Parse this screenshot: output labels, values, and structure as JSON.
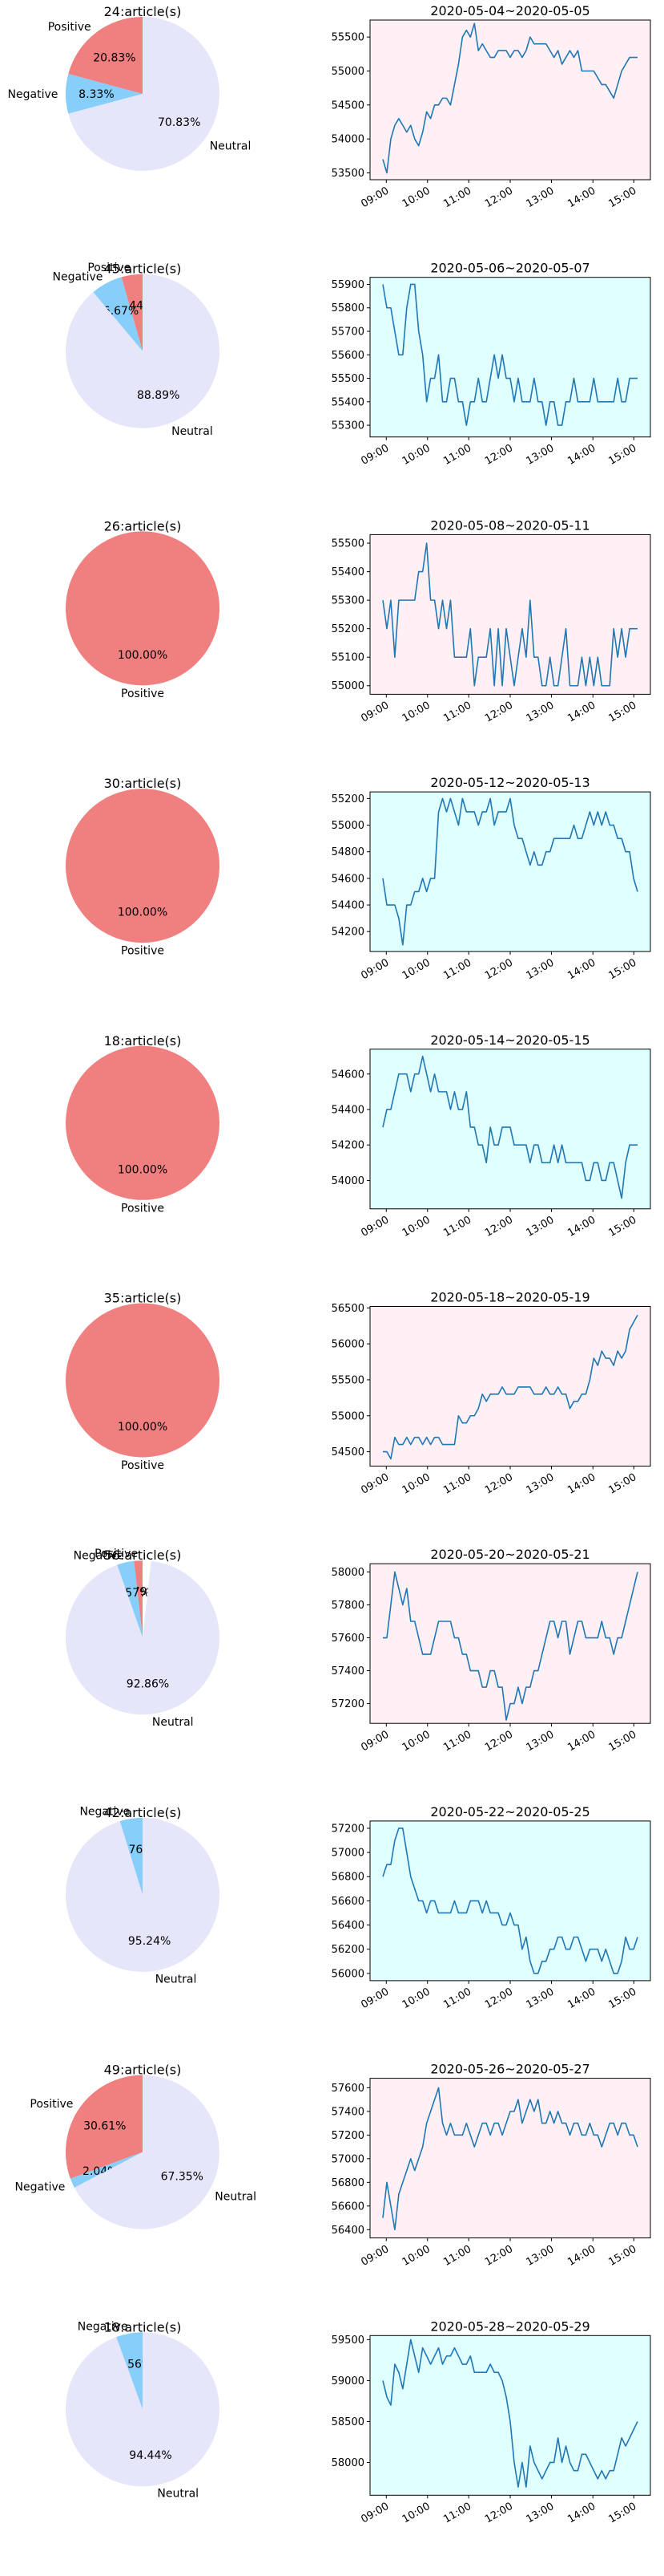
{
  "chart_data": [
    {
      "type": "pie",
      "title": "24:article(s)",
      "labels": [
        "Positive",
        "Negative",
        "Neutral"
      ],
      "values": [
        20.83,
        8.33,
        70.83
      ],
      "pct_labels": [
        "20.83%",
        "8.33%",
        "70.83%"
      ],
      "colors": [
        "#f08080",
        "#87cefa",
        "#e6e6fa"
      ]
    },
    {
      "type": "line",
      "title": "2020-05-04~2020-05-05",
      "background": "#fff0f5",
      "ylim": [
        53400,
        55750
      ],
      "yticks": [
        53500,
        54000,
        54500,
        55000,
        55500
      ],
      "xtick_labels": [
        "09:00",
        "10:00",
        "11:00",
        "12:00",
        "13:00",
        "14:00",
        "15:00"
      ],
      "values": [
        53700,
        53500,
        54000,
        54200,
        54300,
        54200,
        54100,
        54200,
        54000,
        53900,
        54100,
        54400,
        54300,
        54500,
        54500,
        54600,
        54600,
        54500,
        54800,
        55100,
        55500,
        55600,
        55500,
        55700,
        55300,
        55400,
        55300,
        55200,
        55200,
        55300,
        55300,
        55300,
        55200,
        55300,
        55300,
        55200,
        55300,
        55500,
        55400,
        55400,
        55400,
        55400,
        55300,
        55200,
        55300,
        55100,
        55200,
        55300,
        55200,
        55300,
        55000,
        55000,
        55000,
        55000,
        54900,
        54800,
        54800,
        54700,
        54600,
        54800,
        55000,
        55100,
        55200,
        55200,
        55200
      ]
    },
    {
      "type": "pie",
      "title": "45:article(s)",
      "labels": [
        "Positive",
        "Negative",
        "Neutral"
      ],
      "values": [
        4.44,
        6.67,
        88.89
      ],
      "pct_labels": [
        "4.44%",
        "6.67%",
        "88.89%"
      ],
      "colors": [
        "#f08080",
        "#87cefa",
        "#e6e6fa"
      ]
    },
    {
      "type": "line",
      "title": "2020-05-06~2020-05-07",
      "background": "#e0ffff",
      "ylim": [
        55250,
        55930
      ],
      "yticks": [
        55300,
        55400,
        55500,
        55600,
        55700,
        55800,
        55900
      ],
      "xtick_labels": [
        "09:00",
        "10:00",
        "11:00",
        "12:00",
        "13:00",
        "14:00",
        "15:00"
      ],
      "values": [
        55900,
        55800,
        55800,
        55700,
        55600,
        55600,
        55800,
        55900,
        55900,
        55700,
        55600,
        55400,
        55500,
        55500,
        55600,
        55400,
        55400,
        55500,
        55500,
        55400,
        55400,
        55300,
        55400,
        55400,
        55500,
        55400,
        55400,
        55500,
        55600,
        55500,
        55600,
        55500,
        55500,
        55400,
        55500,
        55400,
        55400,
        55400,
        55500,
        55400,
        55400,
        55300,
        55400,
        55400,
        55300,
        55300,
        55400,
        55400,
        55500,
        55400,
        55400,
        55400,
        55400,
        55500,
        55400,
        55400,
        55400,
        55400,
        55400,
        55500,
        55400,
        55400,
        55500,
        55500,
        55500
      ]
    },
    {
      "type": "pie",
      "title": "26:article(s)",
      "labels": [
        "Positive"
      ],
      "values": [
        100
      ],
      "pct_labels": [
        "100.00%"
      ],
      "colors": [
        "#f08080"
      ]
    },
    {
      "type": "line",
      "title": "2020-05-08~2020-05-11",
      "background": "#fff0f5",
      "ylim": [
        54970,
        55530
      ],
      "yticks": [
        55000,
        55100,
        55200,
        55300,
        55400,
        55500
      ],
      "xtick_labels": [
        "09:00",
        "10:00",
        "11:00",
        "12:00",
        "13:00",
        "14:00",
        "15:00"
      ],
      "values": [
        55300,
        55200,
        55300,
        55100,
        55300,
        55300,
        55300,
        55300,
        55300,
        55400,
        55400,
        55500,
        55300,
        55300,
        55200,
        55300,
        55200,
        55300,
        55100,
        55100,
        55100,
        55100,
        55200,
        55000,
        55100,
        55100,
        55100,
        55200,
        55000,
        55200,
        55000,
        55200,
        55100,
        55000,
        55100,
        55200,
        55100,
        55300,
        55100,
        55100,
        55000,
        55000,
        55100,
        55000,
        55000,
        55100,
        55200,
        55000,
        55000,
        55000,
        55100,
        55000,
        55100,
        55000,
        55100,
        55000,
        55000,
        55000,
        55200,
        55100,
        55200,
        55100,
        55200,
        55200,
        55200
      ]
    },
    {
      "type": "pie",
      "title": "30:article(s)",
      "labels": [
        "Positive"
      ],
      "values": [
        100
      ],
      "pct_labels": [
        "100.00%"
      ],
      "colors": [
        "#f08080"
      ]
    },
    {
      "type": "line",
      "title": "2020-05-12~2020-05-13",
      "background": "#e0ffff",
      "ylim": [
        54050,
        55250
      ],
      "yticks": [
        54200,
        54400,
        54600,
        54800,
        55000,
        55200
      ],
      "xtick_labels": [
        "09:00",
        "10:00",
        "11:00",
        "12:00",
        "13:00",
        "14:00",
        "15:00"
      ],
      "values": [
        54600,
        54400,
        54400,
        54400,
        54300,
        54100,
        54400,
        54400,
        54500,
        54500,
        54600,
        54500,
        54600,
        54600,
        55100,
        55200,
        55100,
        55200,
        55100,
        55000,
        55200,
        55100,
        55100,
        55100,
        55000,
        55100,
        55100,
        55200,
        55000,
        55100,
        55100,
        55100,
        55200,
        55000,
        54900,
        54900,
        54800,
        54700,
        54800,
        54700,
        54700,
        54800,
        54800,
        54900,
        54900,
        54900,
        54900,
        54900,
        55000,
        54900,
        54900,
        55000,
        55100,
        55000,
        55100,
        55000,
        55100,
        55000,
        55000,
        54900,
        54900,
        54800,
        54800,
        54600,
        54500
      ]
    },
    {
      "type": "pie",
      "title": "18:article(s)",
      "labels": [
        "Positive"
      ],
      "values": [
        100
      ],
      "pct_labels": [
        "100.00%"
      ],
      "colors": [
        "#f08080"
      ]
    },
    {
      "type": "line",
      "title": "2020-05-14~2020-05-15",
      "background": "#e0ffff",
      "ylim": [
        53840,
        54740
      ],
      "yticks": [
        54000,
        54200,
        54400,
        54600
      ],
      "xtick_labels": [
        "09:00",
        "10:00",
        "11:00",
        "12:00",
        "13:00",
        "14:00",
        "15:00"
      ],
      "values": [
        54300,
        54400,
        54400,
        54500,
        54600,
        54600,
        54600,
        54500,
        54600,
        54600,
        54700,
        54600,
        54500,
        54600,
        54500,
        54500,
        54500,
        54400,
        54500,
        54400,
        54400,
        54500,
        54300,
        54300,
        54200,
        54200,
        54100,
        54300,
        54200,
        54200,
        54300,
        54300,
        54300,
        54200,
        54200,
        54200,
        54200,
        54100,
        54200,
        54200,
        54100,
        54100,
        54100,
        54200,
        54100,
        54200,
        54100,
        54100,
        54100,
        54100,
        54100,
        54000,
        54000,
        54100,
        54100,
        54000,
        54000,
        54100,
        54100,
        54000,
        53900,
        54100,
        54200,
        54200,
        54200
      ]
    },
    {
      "type": "pie",
      "title": "35:article(s)",
      "labels": [
        "Positive"
      ],
      "values": [
        100
      ],
      "pct_labels": [
        "100.00%"
      ],
      "colors": [
        "#f08080"
      ]
    },
    {
      "type": "line",
      "title": "2020-05-18~2020-05-19",
      "background": "#fff0f5",
      "ylim": [
        54300,
        56520
      ],
      "yticks": [
        54500,
        55000,
        55500,
        56000,
        56500
      ],
      "xtick_labels": [
        "09:00",
        "10:00",
        "11:00",
        "12:00",
        "13:00",
        "14:00",
        "15:00"
      ],
      "values": [
        54500,
        54500,
        54400,
        54700,
        54600,
        54600,
        54700,
        54600,
        54700,
        54700,
        54600,
        54700,
        54600,
        54700,
        54700,
        54600,
        54600,
        54600,
        54600,
        55000,
        54900,
        54900,
        55000,
        55000,
        55100,
        55300,
        55200,
        55300,
        55300,
        55300,
        55400,
        55300,
        55300,
        55300,
        55400,
        55400,
        55400,
        55400,
        55300,
        55300,
        55300,
        55400,
        55300,
        55300,
        55400,
        55300,
        55300,
        55100,
        55200,
        55200,
        55300,
        55300,
        55500,
        55800,
        55700,
        55900,
        55800,
        55800,
        55700,
        55900,
        55800,
        55900,
        56200,
        56300,
        56400
      ]
    },
    {
      "type": "pie",
      "title": "56:article(s)",
      "labels": [
        "Positive",
        "Negative",
        "Neutral"
      ],
      "values": [
        1.79,
        3.57,
        92.86
      ],
      "pct_labels": [
        "1.79%",
        "3.57%",
        "92.86%"
      ],
      "colors": [
        "#f08080",
        "#87cefa",
        "#e6e6fa"
      ]
    },
    {
      "type": "line",
      "title": "2020-05-20~2020-05-21",
      "background": "#fff0f5",
      "ylim": [
        57080,
        58050
      ],
      "yticks": [
        57200,
        57400,
        57600,
        57800,
        58000
      ],
      "xtick_labels": [
        "09:00",
        "10:00",
        "11:00",
        "12:00",
        "13:00",
        "14:00",
        "15:00"
      ],
      "values": [
        57600,
        57600,
        57800,
        58000,
        57900,
        57800,
        57900,
        57700,
        57700,
        57600,
        57500,
        57500,
        57500,
        57600,
        57700,
        57700,
        57700,
        57700,
        57600,
        57600,
        57500,
        57500,
        57400,
        57400,
        57400,
        57300,
        57300,
        57400,
        57400,
        57300,
        57300,
        57100,
        57200,
        57200,
        57300,
        57200,
        57300,
        57300,
        57400,
        57400,
        57500,
        57600,
        57700,
        57700,
        57600,
        57700,
        57700,
        57500,
        57600,
        57700,
        57700,
        57600,
        57600,
        57600,
        57600,
        57700,
        57600,
        57600,
        57500,
        57600,
        57600,
        57700,
        57800,
        57900,
        58000
      ]
    },
    {
      "type": "pie",
      "title": "42:article(s)",
      "labels": [
        "Negative",
        "Neutral"
      ],
      "values": [
        4.76,
        95.24
      ],
      "pct_labels": [
        "4.76%",
        "95.24%"
      ],
      "colors": [
        "#87cefa",
        "#e6e6fa"
      ]
    },
    {
      "type": "line",
      "title": "2020-05-22~2020-05-25",
      "background": "#e0ffff",
      "ylim": [
        55940,
        57260
      ],
      "yticks": [
        56000,
        56200,
        56400,
        56600,
        56800,
        57000,
        57200
      ],
      "xtick_labels": [
        "09:00",
        "10:00",
        "11:00",
        "12:00",
        "13:00",
        "14:00",
        "15:00"
      ],
      "values": [
        56800,
        56900,
        56900,
        57100,
        57200,
        57200,
        57000,
        56800,
        56700,
        56600,
        56600,
        56500,
        56600,
        56600,
        56500,
        56500,
        56500,
        56500,
        56600,
        56500,
        56500,
        56500,
        56600,
        56600,
        56600,
        56500,
        56600,
        56500,
        56500,
        56500,
        56400,
        56400,
        56500,
        56400,
        56400,
        56200,
        56300,
        56100,
        56000,
        56000,
        56100,
        56100,
        56200,
        56200,
        56300,
        56300,
        56200,
        56200,
        56300,
        56300,
        56200,
        56100,
        56200,
        56200,
        56200,
        56100,
        56200,
        56100,
        56000,
        56000,
        56100,
        56300,
        56200,
        56200,
        56300
      ]
    },
    {
      "type": "pie",
      "title": "49:article(s)",
      "labels": [
        "Positive",
        "Negative",
        "Neutral"
      ],
      "values": [
        30.61,
        2.04,
        67.35
      ],
      "pct_labels": [
        "30.61%",
        "2.04%",
        "67.35%"
      ],
      "colors": [
        "#f08080",
        "#87cefa",
        "#e6e6fa"
      ]
    },
    {
      "type": "line",
      "title": "2020-05-26~2020-05-27",
      "background": "#fff0f5",
      "ylim": [
        56330,
        57680
      ],
      "yticks": [
        56400,
        56600,
        56800,
        57000,
        57200,
        57400,
        57600
      ],
      "xtick_labels": [
        "09:00",
        "10:00",
        "11:00",
        "12:00",
        "13:00",
        "14:00",
        "15:00"
      ],
      "values": [
        56500,
        56800,
        56600,
        56400,
        56700,
        56800,
        56900,
        57000,
        56900,
        57000,
        57100,
        57300,
        57400,
        57500,
        57600,
        57300,
        57200,
        57300,
        57200,
        57200,
        57200,
        57300,
        57200,
        57100,
        57200,
        57300,
        57300,
        57200,
        57300,
        57300,
        57200,
        57300,
        57400,
        57400,
        57500,
        57300,
        57400,
        57500,
        57400,
        57500,
        57300,
        57300,
        57400,
        57300,
        57400,
        57300,
        57300,
        57200,
        57300,
        57300,
        57200,
        57200,
        57300,
        57200,
        57200,
        57100,
        57200,
        57300,
        57300,
        57200,
        57300,
        57300,
        57200,
        57200,
        57100
      ]
    },
    {
      "type": "pie",
      "title": "18:article(s)",
      "labels": [
        "Negative",
        "Neutral"
      ],
      "values": [
        5.56,
        94.44
      ],
      "pct_labels": [
        "5.56%",
        "94.44%"
      ],
      "colors": [
        "#87cefa",
        "#e6e6fa"
      ]
    },
    {
      "type": "line",
      "title": "2020-05-28~2020-05-29",
      "background": "#e0ffff",
      "ylim": [
        57600,
        59550
      ],
      "yticks": [
        58000,
        58500,
        59000,
        59500
      ],
      "xtick_labels": [
        "09:00",
        "10:00",
        "11:00",
        "12:00",
        "13:00",
        "14:00",
        "15:00"
      ],
      "values": [
        59000,
        58800,
        58700,
        59200,
        59100,
        58900,
        59200,
        59500,
        59300,
        59100,
        59400,
        59300,
        59200,
        59300,
        59400,
        59200,
        59300,
        59300,
        59400,
        59300,
        59200,
        59200,
        59300,
        59100,
        59100,
        59100,
        59100,
        59200,
        59100,
        59100,
        59000,
        58800,
        58500,
        58000,
        57700,
        58000,
        57700,
        58200,
        58000,
        57900,
        57800,
        57900,
        58000,
        58000,
        58300,
        58000,
        58200,
        58000,
        57900,
        57900,
        58100,
        58100,
        58000,
        57900,
        57800,
        57900,
        57800,
        57900,
        57900,
        58100,
        58300,
        58200,
        58300,
        58400,
        58500
      ]
    }
  ]
}
